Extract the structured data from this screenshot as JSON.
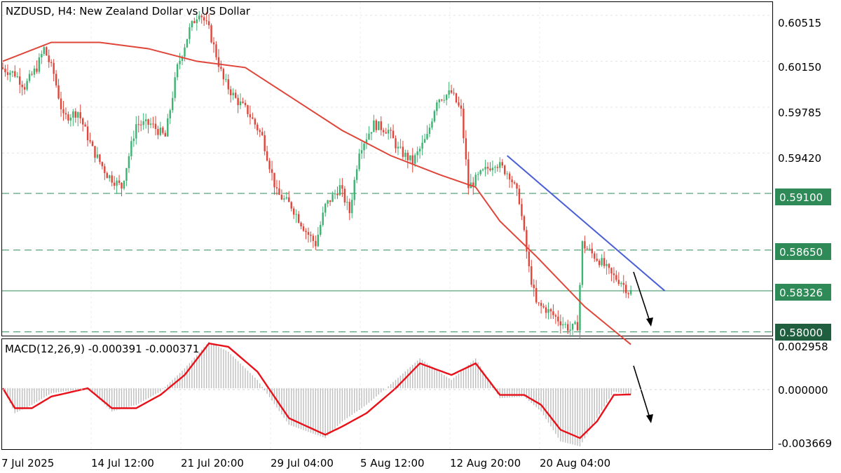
{
  "header": {
    "title": "NZDUSD, H4:  New Zealand Dollar vs US Dollar"
  },
  "macd_header": {
    "label": "MACD(12,26,9) -0.000391 -0.000371"
  },
  "colors": {
    "bull": "#3cb371",
    "bear": "#e0453a",
    "ma": "#e0453a",
    "trendline": "#4a5fd6",
    "level_line": "#2e8b57",
    "level_tag": "#2e8b57",
    "current_tag": "#1f5f3f",
    "macd_line": "#e8111a",
    "histogram": "#bdbdbd"
  },
  "chart_data": [
    {
      "type": "candlestick",
      "title": "NZDUSD, H4:  New Zealand Dollar vs US Dollar",
      "ylim": [
        0.5797,
        0.6062
      ],
      "price_ticks": [
        "0.60515",
        "0.60150",
        "0.59785",
        "0.59420",
        "0.59100",
        "0.58650",
        "0.58326",
        "0.58000"
      ],
      "x_ticks": [
        "7 Jul 2025",
        "14 Jul 12:00",
        "21 Jul 20:00",
        "29 Jul 04:00",
        "5 Aug 12:00",
        "12 Aug 20:00",
        "20 Aug 04:00"
      ],
      "levels": [
        {
          "price": 0.591,
          "label": "0.59100",
          "style": "dashed"
        },
        {
          "price": 0.5865,
          "label": "0.58650",
          "style": "dashed"
        },
        {
          "price": 0.58326,
          "label": "0.58326",
          "style": "solid"
        },
        {
          "price": 0.58,
          "label": "0.58000",
          "style": "dashed"
        }
      ],
      "price_path": [
        [
          0,
          0.601
        ],
        [
          6,
          0.6005
        ],
        [
          10,
          0.5995
        ],
        [
          15,
          0.601
        ],
        [
          18,
          0.6025
        ],
        [
          22,
          0.6005
        ],
        [
          26,
          0.597
        ],
        [
          32,
          0.5975
        ],
        [
          38,
          0.5945
        ],
        [
          44,
          0.5925
        ],
        [
          50,
          0.5915
        ],
        [
          56,
          0.5965
        ],
        [
          62,
          0.5965
        ],
        [
          68,
          0.5955
        ],
        [
          73,
          0.601
        ],
        [
          78,
          0.604
        ],
        [
          82,
          0.6055
        ],
        [
          86,
          0.604
        ],
        [
          92,
          0.6
        ],
        [
          97,
          0.5985
        ],
        [
          102,
          0.5975
        ],
        [
          108,
          0.5955
        ],
        [
          114,
          0.591
        ],
        [
          120,
          0.59
        ],
        [
          126,
          0.588
        ],
        [
          130,
          0.587
        ],
        [
          134,
          0.59
        ],
        [
          140,
          0.5915
        ],
        [
          144,
          0.5895
        ],
        [
          148,
          0.5945
        ],
        [
          154,
          0.5965
        ],
        [
          160,
          0.596
        ],
        [
          164,
          0.5945
        ],
        [
          170,
          0.5935
        ],
        [
          176,
          0.5955
        ],
        [
          180,
          0.5985
        ],
        [
          186,
          0.599
        ],
        [
          190,
          0.5975
        ],
        [
          193,
          0.5915
        ],
        [
          198,
          0.5925
        ],
        [
          204,
          0.5935
        ],
        [
          210,
          0.5925
        ],
        [
          214,
          0.5905
        ],
        [
          218,
          0.585
        ],
        [
          221,
          0.5822
        ],
        [
          225,
          0.5818
        ],
        [
          230,
          0.581
        ],
        [
          235,
          0.5802
        ],
        [
          238,
          0.5805
        ],
        [
          240,
          0.587
        ],
        [
          244,
          0.5862
        ],
        [
          248,
          0.5855
        ],
        [
          252,
          0.5845
        ],
        [
          256,
          0.584
        ],
        [
          259,
          0.5832
        ]
      ],
      "ma": [
        [
          0,
          0.6015
        ],
        [
          20,
          0.603
        ],
        [
          40,
          0.603
        ],
        [
          60,
          0.6025
        ],
        [
          80,
          0.6015
        ],
        [
          100,
          0.601
        ],
        [
          120,
          0.5985
        ],
        [
          140,
          0.596
        ],
        [
          160,
          0.594
        ],
        [
          180,
          0.5925
        ],
        [
          195,
          0.5915
        ],
        [
          205,
          0.5888
        ],
        [
          220,
          0.586
        ],
        [
          240,
          0.582
        ],
        [
          259,
          0.579
        ]
      ],
      "trendline": [
        [
          208,
          0.594
        ],
        [
          273,
          0.58326
        ]
      ],
      "current_price": 0.58326
    },
    {
      "type": "macd",
      "name": "MACD(12,26,9)",
      "values": [
        -0.000391,
        -0.000371
      ],
      "ylim": [
        -0.003669,
        0.002958
      ],
      "y_ticks": [
        "0.002958",
        "0.000000",
        "-0.003669"
      ],
      "signal_path": [
        [
          0,
          0.0
        ],
        [
          5,
          -0.0012
        ],
        [
          12,
          -0.0012
        ],
        [
          20,
          -0.0005
        ],
        [
          35,
          0.0
        ],
        [
          45,
          -0.0012
        ],
        [
          55,
          -0.0012
        ],
        [
          65,
          -0.0004
        ],
        [
          75,
          0.0008
        ],
        [
          85,
          0.0027
        ],
        [
          93,
          0.0025
        ],
        [
          105,
          0.001
        ],
        [
          118,
          -0.0018
        ],
        [
          133,
          -0.0028
        ],
        [
          140,
          -0.0023
        ],
        [
          150,
          -0.0015
        ],
        [
          162,
          0.0
        ],
        [
          172,
          0.0015
        ],
        [
          185,
          0.0008
        ],
        [
          195,
          0.0015
        ],
        [
          205,
          -0.0004
        ],
        [
          215,
          -0.0004
        ],
        [
          222,
          -0.001
        ],
        [
          230,
          -0.0025
        ],
        [
          238,
          -0.003
        ],
        [
          245,
          -0.002
        ],
        [
          252,
          -0.0004
        ],
        [
          259,
          -0.000371
        ]
      ],
      "histogram_path": [
        [
          0,
          0.0
        ],
        [
          5,
          -0.0015
        ],
        [
          12,
          -0.001
        ],
        [
          20,
          -0.0003
        ],
        [
          35,
          0.0
        ],
        [
          45,
          -0.0014
        ],
        [
          55,
          -0.001
        ],
        [
          65,
          -0.0002
        ],
        [
          75,
          0.0012
        ],
        [
          85,
          0.0028
        ],
        [
          93,
          0.0022
        ],
        [
          105,
          0.0005
        ],
        [
          118,
          -0.0022
        ],
        [
          133,
          -0.003
        ],
        [
          140,
          -0.002
        ],
        [
          150,
          -0.001
        ],
        [
          162,
          0.0005
        ],
        [
          172,
          0.0018
        ],
        [
          185,
          0.0005
        ],
        [
          195,
          0.0018
        ],
        [
          205,
          -0.0006
        ],
        [
          215,
          -0.0005
        ],
        [
          222,
          -0.0014
        ],
        [
          230,
          -0.0032
        ],
        [
          238,
          -0.0035
        ],
        [
          245,
          -0.0018
        ],
        [
          252,
          -0.0002
        ],
        [
          259,
          -0.000391
        ]
      ]
    }
  ]
}
